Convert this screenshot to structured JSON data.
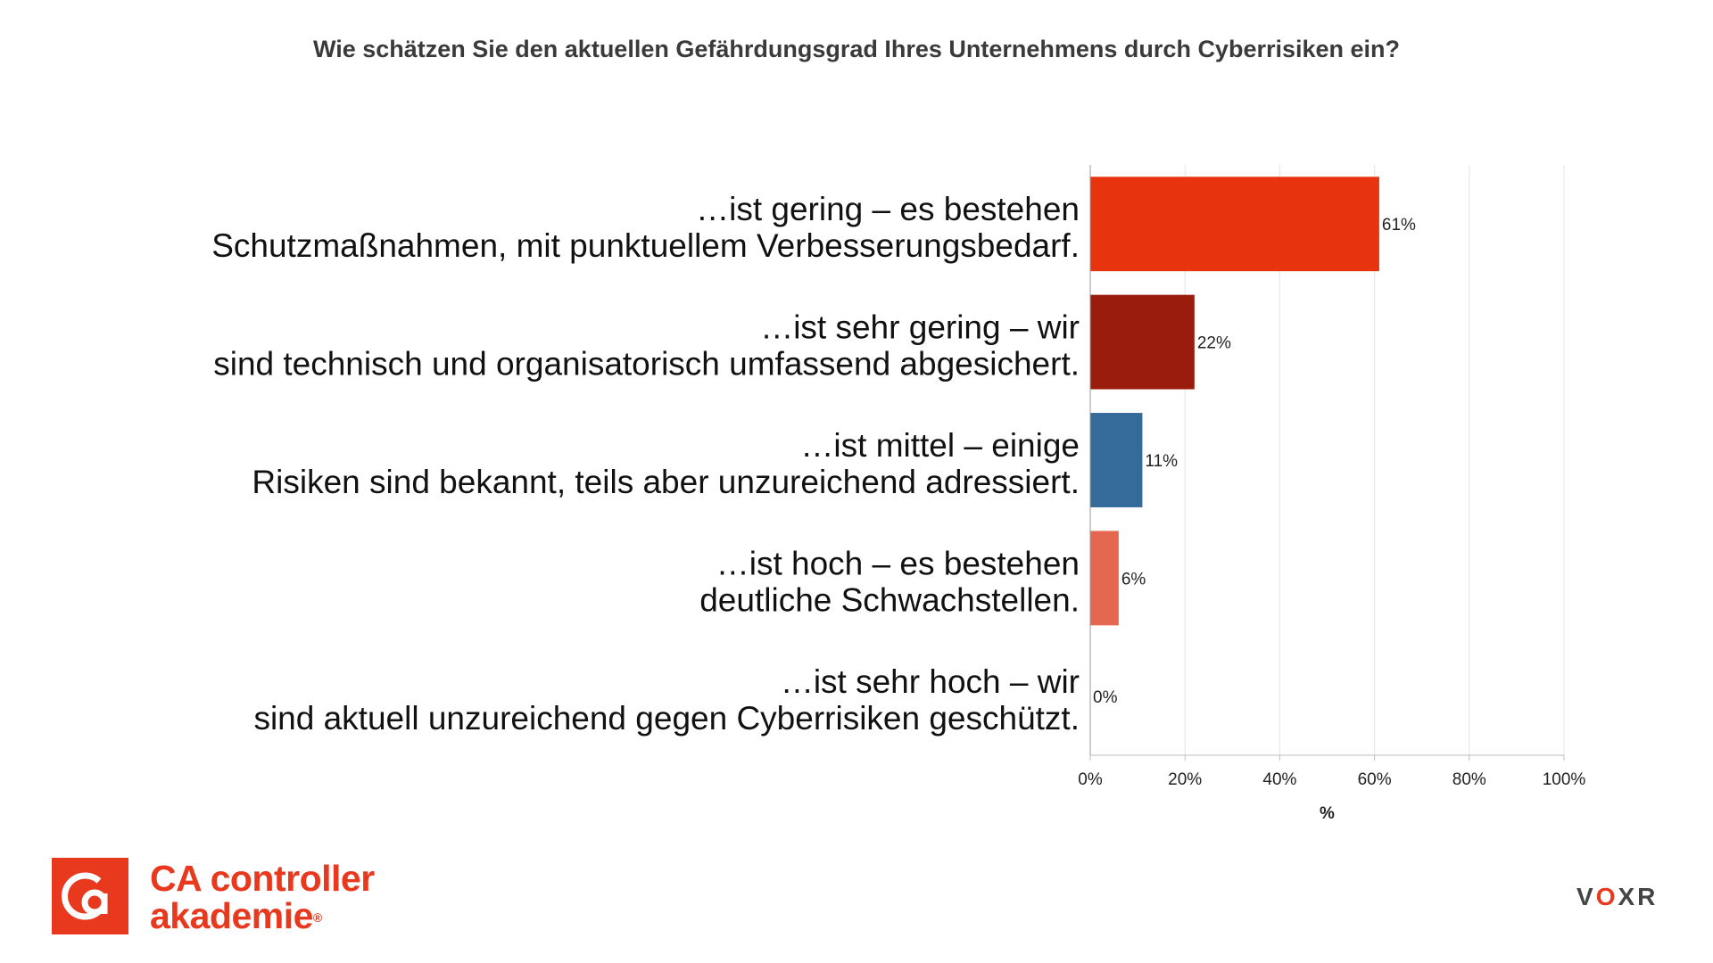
{
  "chart_data": {
    "type": "bar",
    "orientation": "horizontal",
    "title": "Wie schätzen Sie den aktuellen Gefährdungsgrad Ihres Unternehmens durch Cyberrisiken ein?",
    "categories": [
      [
        "…ist gering – es bestehen",
        "Schutzmaßnahmen, mit punktuellem Verbesserungsbedarf."
      ],
      [
        "…ist sehr gering – wir",
        "sind technisch und organisatorisch umfassend abgesichert."
      ],
      [
        "…ist mittel – einige",
        "Risiken sind bekannt, teils aber unzureichend adressiert."
      ],
      [
        "…ist hoch – es bestehen",
        "deutliche Schwachstellen."
      ],
      [
        "…ist sehr hoch – wir",
        "sind aktuell unzureichend gegen Cyberrisiken geschützt."
      ]
    ],
    "values": [
      61,
      22,
      11,
      6,
      0
    ],
    "data_labels": [
      "61%",
      "22%",
      "11%",
      "6%",
      "0%"
    ],
    "colors": [
      "#e8340e",
      "#9a1c0c",
      "#346b9a",
      "#e4684f",
      "#c9c9c9"
    ],
    "xlim": [
      0,
      100
    ],
    "xticks": [
      0,
      20,
      40,
      60,
      80,
      100
    ],
    "xtick_labels": [
      "0%",
      "20%",
      "40%",
      "60%",
      "80%",
      "100%"
    ],
    "xlabel": "%",
    "ylabel": "",
    "grid": true
  },
  "brand": {
    "logo_line1": "CA controller",
    "logo_line2": "akademie",
    "logo_reg": "®",
    "logo_color": "#e8381e",
    "logo_icon": "ca-logo-icon",
    "voxr": "VOXR"
  }
}
